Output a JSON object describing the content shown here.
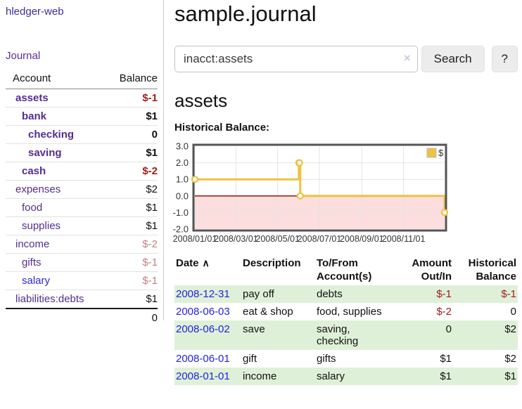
{
  "app": {
    "title": "hledger-web",
    "nav_journal": "Journal"
  },
  "colors": {
    "purple_link": "#552d90",
    "blue_link": "#2222dd",
    "negative_strong": "#a31c1c",
    "negative_muted": "#c28181",
    "row_highlight_green": "#dff0d8",
    "series_gold": "#edc240"
  },
  "sidebar": {
    "columns": [
      "Account",
      "Balance"
    ],
    "accounts": [
      {
        "name": "assets",
        "balance": "$-1",
        "level": 1,
        "bold": true,
        "neg": "strong"
      },
      {
        "name": "bank",
        "balance": "$1",
        "level": 2,
        "bold": true,
        "neg": ""
      },
      {
        "name": "checking",
        "balance": "0",
        "level": 3,
        "bold": true,
        "neg": ""
      },
      {
        "name": "saving",
        "balance": "$1",
        "level": 3,
        "bold": true,
        "neg": ""
      },
      {
        "name": "cash",
        "balance": "$-2",
        "level": 2,
        "bold": true,
        "neg": "strong"
      },
      {
        "name": "expenses",
        "balance": "$2",
        "level": 1,
        "bold": false,
        "neg": ""
      },
      {
        "name": "food",
        "balance": "$1",
        "level": 2,
        "bold": false,
        "neg": ""
      },
      {
        "name": "supplies",
        "balance": "$1",
        "level": 2,
        "bold": false,
        "neg": ""
      },
      {
        "name": "income",
        "balance": "$-2",
        "level": 1,
        "bold": false,
        "neg": "muted"
      },
      {
        "name": "gifts",
        "balance": "$-1",
        "level": 2,
        "bold": false,
        "neg": "muted"
      },
      {
        "name": "salary",
        "balance": "$-1",
        "level": 2,
        "bold": false,
        "neg": "muted",
        "link": "blue"
      },
      {
        "name": "liabilities:debts",
        "balance": "$1",
        "level": 1,
        "bold": false,
        "neg": ""
      }
    ],
    "total": "0"
  },
  "main": {
    "title": "sample.journal",
    "search": {
      "value": "inacct:assets",
      "clear_icon": "×",
      "button_label": "Search",
      "help_label": "?"
    },
    "account_heading": "assets",
    "chart_heading": "Historical Balance:"
  },
  "chart_data": {
    "type": "line",
    "step": true,
    "title": "Historical Balance",
    "series": [
      {
        "name": "$",
        "color": "#edc240",
        "points": [
          [
            "2008-01-01",
            1
          ],
          [
            "2008-06-01",
            2
          ],
          [
            "2008-06-02",
            2
          ],
          [
            "2008-06-03",
            0
          ],
          [
            "2008-12-31",
            -1
          ]
        ]
      }
    ],
    "x_range": [
      "2008-01-01",
      "2008-12-31"
    ],
    "ylim": [
      -2,
      3
    ],
    "y_ticks": [
      "3.0",
      "2.0",
      "1.0",
      "0.0",
      "-1.0",
      "-2.0"
    ],
    "x_ticks": [
      "2008/01/01",
      "2008/03/01",
      "2008/05/01",
      "2008/07/01",
      "2008/09/01",
      "2008/11/01"
    ],
    "legend_position": "top-right",
    "grid": true,
    "gridline_color": "#e4e4e4",
    "zero_line_color": "#8b0000",
    "negative_region_color": "#fcdede",
    "border_color": "#545454"
  },
  "register": {
    "sort_icon": "∧",
    "columns": [
      {
        "l1": "Date",
        "l2": "",
        "align": "left",
        "sortable": true
      },
      {
        "l1": "Description",
        "l2": "",
        "align": "left"
      },
      {
        "l1": "To/From",
        "l2": "Account(s)",
        "align": "left"
      },
      {
        "l1": "Amount",
        "l2": "Out/In",
        "align": "right"
      },
      {
        "l1": "Historical",
        "l2": "Balance",
        "align": "right"
      }
    ],
    "rows": [
      {
        "date": "2008-12-31",
        "description": "pay off",
        "accounts": "debts",
        "amount": "$-1",
        "balance": "$-1"
      },
      {
        "date": "2008-06-03",
        "description": "eat & shop",
        "accounts": "food, supplies",
        "amount": "$-2",
        "balance": "0"
      },
      {
        "date": "2008-06-02",
        "description": "save",
        "accounts": "saving,\nchecking",
        "amount": "0",
        "balance": "$2"
      },
      {
        "date": "2008-06-01",
        "description": "gift",
        "accounts": "gifts",
        "amount": "$1",
        "balance": "$2"
      },
      {
        "date": "2008-01-01",
        "description": "income",
        "accounts": "salary",
        "amount": "$1",
        "balance": "$1"
      }
    ]
  }
}
